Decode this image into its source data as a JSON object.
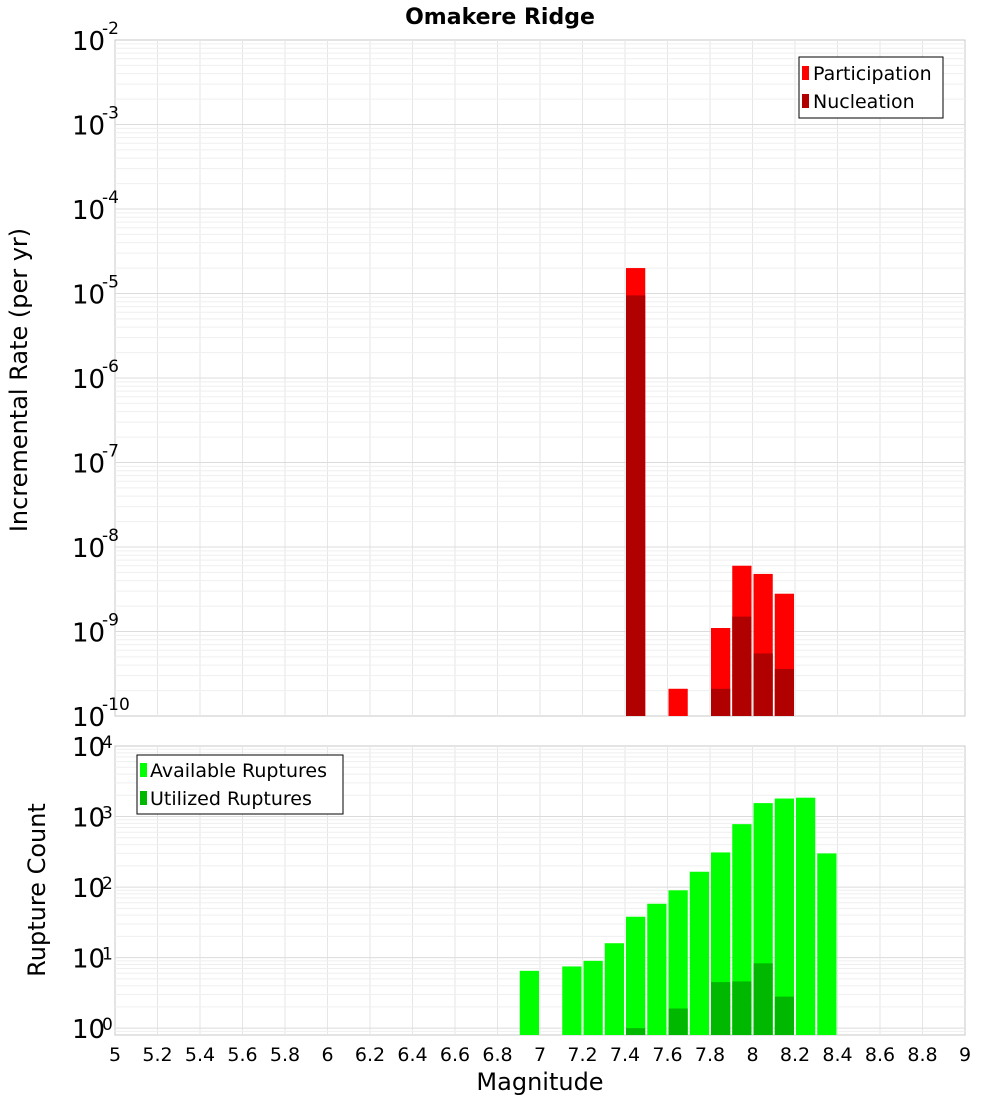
{
  "title": "Omakere Ridge",
  "xlabel": "Magnitude",
  "chart_data": [
    {
      "type": "bar",
      "panel": "top",
      "ylabel": "Incremental Rate (per yr)",
      "yscale": "log",
      "xlim": [
        5,
        9
      ],
      "ylim": [
        1e-10,
        0.01
      ],
      "ytick_base": "10",
      "ytick_exponents": [
        "-10",
        "-9",
        "-8",
        "-7",
        "-6",
        "-5",
        "-4",
        "-3",
        "-2"
      ],
      "legend_position": "top-right",
      "series": [
        {
          "name": "Participation",
          "color": "#ff0000",
          "points": [
            {
              "x": 7.45,
              "y": 2e-05
            },
            {
              "x": 7.65,
              "y": 2.1e-10
            },
            {
              "x": 7.85,
              "y": 1.1e-09
            },
            {
              "x": 7.95,
              "y": 6e-09
            },
            {
              "x": 8.05,
              "y": 4.8e-09
            },
            {
              "x": 8.15,
              "y": 2.8e-09
            }
          ]
        },
        {
          "name": "Nucleation",
          "color": "#b00000",
          "points": [
            {
              "x": 7.45,
              "y": 9.5e-06
            },
            {
              "x": 7.85,
              "y": 2.1e-10
            },
            {
              "x": 7.95,
              "y": 1.5e-09
            },
            {
              "x": 8.05,
              "y": 5.5e-10
            },
            {
              "x": 8.15,
              "y": 3.6e-10
            }
          ]
        }
      ]
    },
    {
      "type": "bar",
      "panel": "bottom",
      "ylabel": "Rupture Count",
      "yscale": "log",
      "xlim": [
        5,
        9
      ],
      "ylim": [
        0.8,
        10000
      ],
      "ytick_base": "10",
      "ytick_exponents": [
        "0",
        "1",
        "2",
        "3",
        "4"
      ],
      "legend_position": "top-left",
      "x_ticks": [
        "5",
        "5.2",
        "5.4",
        "5.6",
        "5.8",
        "6",
        "6.2",
        "6.4",
        "6.6",
        "6.8",
        "7",
        "7.2",
        "7.4",
        "7.6",
        "7.8",
        "8",
        "8.2",
        "8.4",
        "8.6",
        "8.8",
        "9"
      ],
      "series": [
        {
          "name": "Available Ruptures",
          "color": "#00ff00",
          "points": [
            {
              "x": 6.95,
              "y": 6.5
            },
            {
              "x": 7.15,
              "y": 7.5
            },
            {
              "x": 7.25,
              "y": 9
            },
            {
              "x": 7.35,
              "y": 16
            },
            {
              "x": 7.45,
              "y": 38
            },
            {
              "x": 7.55,
              "y": 58
            },
            {
              "x": 7.65,
              "y": 90
            },
            {
              "x": 7.75,
              "y": 165
            },
            {
              "x": 7.85,
              "y": 310
            },
            {
              "x": 7.95,
              "y": 780
            },
            {
              "x": 8.05,
              "y": 1550
            },
            {
              "x": 8.15,
              "y": 1800
            },
            {
              "x": 8.25,
              "y": 1850
            },
            {
              "x": 8.35,
              "y": 300
            }
          ]
        },
        {
          "name": "Utilized Ruptures",
          "color": "#00b800",
          "points": [
            {
              "x": 7.45,
              "y": 1
            },
            {
              "x": 7.65,
              "y": 1.9
            },
            {
              "x": 7.85,
              "y": 4.5
            },
            {
              "x": 7.95,
              "y": 4.6
            },
            {
              "x": 8.05,
              "y": 8.3
            },
            {
              "x": 8.15,
              "y": 2.8
            }
          ]
        }
      ]
    }
  ]
}
